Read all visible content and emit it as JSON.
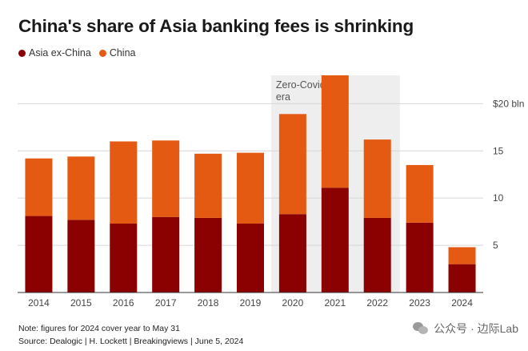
{
  "title": "China's share of Asia banking fees is shrinking",
  "legend": [
    {
      "label": "Asia ex-China",
      "color": "#8b0000"
    },
    {
      "label": "China",
      "color": "#e55a12"
    }
  ],
  "footer": {
    "note": "Note: figures for 2024 cover year to May 31",
    "source": "Source: Dealogic | H. Lockett | Breakingviews | June 5, 2024"
  },
  "watermark": {
    "text": "公众号 · 边际Lab",
    "icon": "wechat-icon"
  },
  "chart_data": {
    "type": "bar",
    "stacked": true,
    "categories": [
      "2014",
      "2015",
      "2016",
      "2017",
      "2018",
      "2019",
      "2020",
      "2021",
      "2022",
      "2023",
      "2024"
    ],
    "series": [
      {
        "name": "Asia ex-China",
        "color": "#8b0000",
        "values": [
          8.1,
          7.7,
          7.3,
          8.0,
          7.9,
          7.3,
          8.3,
          11.1,
          7.9,
          7.4,
          3.0
        ]
      },
      {
        "name": "China",
        "color": "#e55a12",
        "values": [
          6.1,
          6.7,
          8.7,
          8.1,
          6.8,
          7.5,
          10.6,
          11.9,
          8.3,
          6.1,
          1.8
        ]
      }
    ],
    "ylim": [
      0,
      23
    ],
    "yticks": [
      {
        "value": 5,
        "label": "5"
      },
      {
        "value": 10,
        "label": "10"
      },
      {
        "value": 15,
        "label": "15"
      },
      {
        "value": 20,
        "label": "$20 bln"
      }
    ],
    "grid": true,
    "y_axis_side": "right",
    "legend_position": "top-left",
    "shaded_region": {
      "from": "2020",
      "to": "2022",
      "label_lines": [
        "Zero-Covid",
        "era"
      ],
      "color": "#eeeeee"
    }
  }
}
